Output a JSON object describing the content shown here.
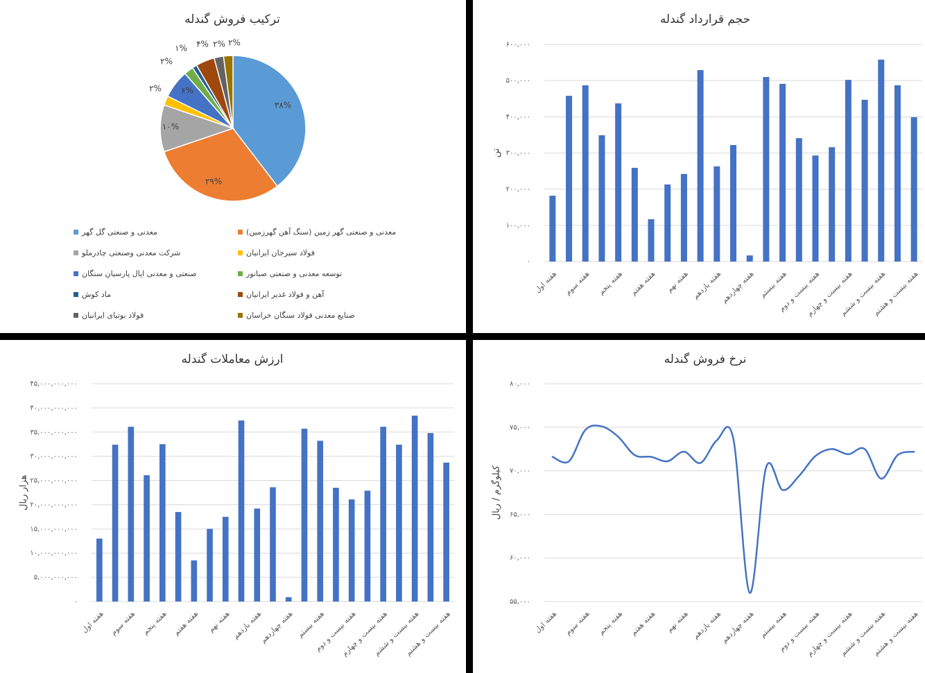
{
  "chart_data": [
    {
      "type": "pie",
      "title": "ترکیب فروش گندله",
      "categories": [
        "معدنی و صنعتی گل گهر",
        "معدنی و صنعتی گهر زمین (سنگ آهن گهرزمین)",
        "شرکت معدنی وصنعتی چادرملو",
        "فولاد سیرجان ایرانیان",
        "صنعتی و معدنی اپال پارسیان سنگان",
        "توسعه معدنی و صنعتی صبانور",
        "ماد کوش",
        "آهن و فولاد غدیر ایرانیان",
        "فولاد بوتیای ایرانیان",
        "صنایع معدنی فولاد سنگان خراسان"
      ],
      "values": [
        38,
        29,
        10,
        2,
        6,
        2,
        1,
        4,
        2,
        2
      ],
      "value_labels": [
        "۳۸%",
        "۲۹%",
        "۱۰%",
        "۲%",
        "۶%",
        "۲%",
        "۱%",
        "۴%",
        "۲%",
        "۲%"
      ],
      "colors": [
        "#5b9bd5",
        "#ed7d31",
        "#a5a5a5",
        "#ffc000",
        "#4472c4",
        "#70ad47",
        "#255e91",
        "#9e480e",
        "#636363",
        "#997300"
      ]
    },
    {
      "type": "bar",
      "title": "حجم قرارداد گندله",
      "y_label": "تن",
      "color": "#4472c4",
      "grid": true,
      "categories": [
        "هفته اول",
        null,
        "هفته سوم",
        null,
        "هفته پنجم",
        null,
        "هفته هفتم",
        null,
        "هفته نهم",
        null,
        "هفته یازدهم",
        null,
        "هفته چهاردهم",
        null,
        "هفته بیستم",
        null,
        "هفته بیست و دوم",
        null,
        "هفته بیست و چهارم",
        null,
        "هفته بیست و ششم",
        null,
        "هفته بیست و هشتم"
      ],
      "values": [
        182000,
        458000,
        487000,
        349000,
        437000,
        259000,
        117000,
        213000,
        242000,
        529000,
        263000,
        322000,
        17000,
        510000,
        491000,
        341000,
        293000,
        316000,
        502000,
        447000,
        558000,
        487000,
        399000
      ],
      "ylim": [
        0,
        600000
      ],
      "yticks": [
        {
          "value": 0,
          "label": "۰"
        },
        {
          "value": 100000,
          "label": "۱۰۰,۰۰۰"
        },
        {
          "value": 200000,
          "label": "۲۰۰,۰۰۰"
        },
        {
          "value": 300000,
          "label": "۳۰۰,۰۰۰"
        },
        {
          "value": 400000,
          "label": "۴۰۰,۰۰۰"
        },
        {
          "value": 500000,
          "label": "۵۰۰,۰۰۰"
        },
        {
          "value": 600000,
          "label": "۶۰۰,۰۰۰"
        }
      ]
    },
    {
      "type": "bar",
      "title": "ارزش معاملات گندله",
      "y_label": "هزار ریال",
      "color": "#4472c4",
      "grid": true,
      "categories": [
        "هفته اول",
        null,
        "هفته سوم",
        null,
        "هفته پنجم",
        null,
        "هفته هفتم",
        null,
        "هفته نهم",
        null,
        "هفته یازدهم",
        null,
        "هفته چهاردهم",
        null,
        "هفته بیستم",
        null,
        "هفته بیست و دوم",
        null,
        "هفته بیست و چهارم",
        null,
        "هفته بیست و ششم",
        null,
        "هفته بیست و هشتم"
      ],
      "values": [
        13000000000,
        32400000000,
        36100000000,
        26100000000,
        32500000000,
        18500000000,
        8500000000,
        15000000000,
        17500000000,
        37400000000,
        19200000000,
        23600000000,
        900000000,
        35700000000,
        33200000000,
        23500000000,
        21100000000,
        22900000000,
        36100000000,
        32400000000,
        38400000000,
        34800000000,
        28700000000
      ],
      "ylim": [
        0,
        45000000000
      ],
      "yticks": [
        {
          "value": 0,
          "label": "۰"
        },
        {
          "value": 5000000000,
          "label": "۵,۰۰۰,۰۰۰,۰۰۰"
        },
        {
          "value": 10000000000,
          "label": "۱۰,۰۰۰,۰۰۰,۰۰۰"
        },
        {
          "value": 15000000000,
          "label": "۱۵,۰۰۰,۰۰۰,۰۰۰"
        },
        {
          "value": 20000000000,
          "label": "۲۰,۰۰۰,۰۰۰,۰۰۰"
        },
        {
          "value": 25000000000,
          "label": "۲۵,۰۰۰,۰۰۰,۰۰۰"
        },
        {
          "value": 30000000000,
          "label": "۳۰,۰۰۰,۰۰۰,۰۰۰"
        },
        {
          "value": 35000000000,
          "label": "۳۵,۰۰۰,۰۰۰,۰۰۰"
        },
        {
          "value": 40000000000,
          "label": "۴۰,۰۰۰,۰۰۰,۰۰۰"
        },
        {
          "value": 45000000000,
          "label": "۴۵,۰۰۰,۰۰۰,۰۰۰"
        }
      ]
    },
    {
      "type": "line",
      "title": "نرخ فروش گندله",
      "y_label": "کیلوگرم / ریال",
      "color": "#4472c4",
      "grid": true,
      "categories": [
        "هفته اول",
        null,
        "هفته سوم",
        null,
        "هفته پنجم",
        null,
        "هفته هفتم",
        null,
        "هفته نهم",
        null,
        "هفته یازدهم",
        null,
        "هفته چهاردهم",
        null,
        "هفته بیستم",
        null,
        "هفته بیست و دوم",
        null,
        "هفته بیست و چهارم",
        null,
        "هفته بیست و ششم",
        null,
        "هفته بیست و هشتم"
      ],
      "values": [
        71600,
        71100,
        74700,
        75100,
        73900,
        71800,
        71600,
        71100,
        72200,
        70900,
        73500,
        73700,
        56000,
        70400,
        67800,
        69400,
        71700,
        72500,
        71900,
        72500,
        69100,
        71800,
        72200
      ],
      "ylim": [
        55000,
        80000
      ],
      "yticks": [
        {
          "value": 55000,
          "label": "۵۵,۰۰۰"
        },
        {
          "value": 60000,
          "label": "۶۰,۰۰۰"
        },
        {
          "value": 65000,
          "label": "۶۵,۰۰۰"
        },
        {
          "value": 70000,
          "label": "۷۰,۰۰۰"
        },
        {
          "value": 75000,
          "label": "۷۵,۰۰۰"
        },
        {
          "value": 80000,
          "label": "۸۰,۰۰۰"
        }
      ]
    }
  ]
}
